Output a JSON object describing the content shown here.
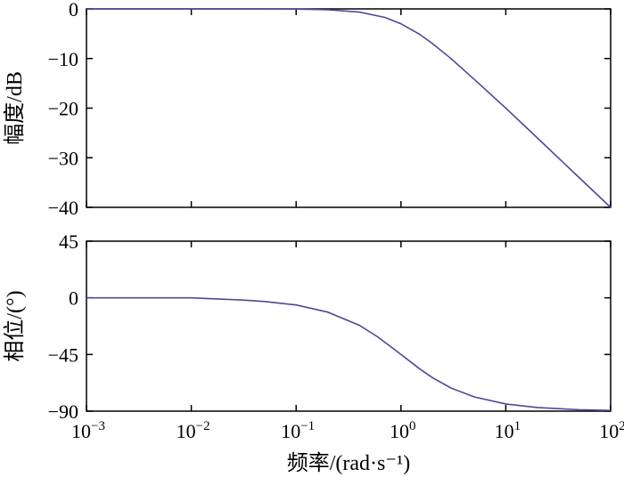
{
  "chart_data": [
    {
      "type": "line",
      "panel": "magnitude",
      "ylabel": "幅度/dB",
      "xscale": "log",
      "xlim": [
        0.001,
        100
      ],
      "ylim": [
        -40,
        0
      ],
      "yticks": [
        0,
        -10,
        -20,
        -30,
        -40
      ],
      "ytick_labels": [
        "0",
        "−10",
        "−20",
        "−30",
        "−40"
      ],
      "grid": false,
      "line_color": "#4a4a9a",
      "x": [
        0.001,
        0.01,
        0.05,
        0.1,
        0.2,
        0.4,
        0.7,
        1,
        1.5,
        2,
        3,
        5,
        10,
        20,
        50,
        100
      ],
      "y": [
        0,
        0,
        0,
        -0.04,
        -0.17,
        -0.64,
        -1.7,
        -3.0,
        -5.1,
        -7.0,
        -10.0,
        -14.2,
        -20.0,
        -26.0,
        -34.0,
        -40.0
      ]
    },
    {
      "type": "line",
      "panel": "phase",
      "ylabel": "相位/(°)",
      "xlabel": "频率/(rad·s⁻¹)",
      "xscale": "log",
      "xlim": [
        0.001,
        100
      ],
      "ylim": [
        -90,
        45
      ],
      "yticks": [
        45,
        0,
        -45,
        -90
      ],
      "ytick_labels": [
        "45",
        "0",
        "−45",
        "−90"
      ],
      "xticks": [
        0.001,
        0.01,
        0.1,
        1,
        10,
        100
      ],
      "xtick_base": "10",
      "xtick_exponents": [
        "−3",
        "−2",
        "−1",
        "0",
        "1",
        "2"
      ],
      "grid": false,
      "line_color": "#4a4a9a",
      "x": [
        0.001,
        0.01,
        0.03,
        0.05,
        0.1,
        0.2,
        0.4,
        0.6,
        1,
        1.5,
        2,
        3,
        5,
        10,
        20,
        50,
        100
      ],
      "y": [
        0,
        0,
        -1.7,
        -2.9,
        -5.7,
        -11.3,
        -21.8,
        -31.0,
        -45.0,
        -56.3,
        -63.4,
        -71.6,
        -78.7,
        -84.3,
        -87.1,
        -88.9,
        -89.4
      ]
    }
  ]
}
